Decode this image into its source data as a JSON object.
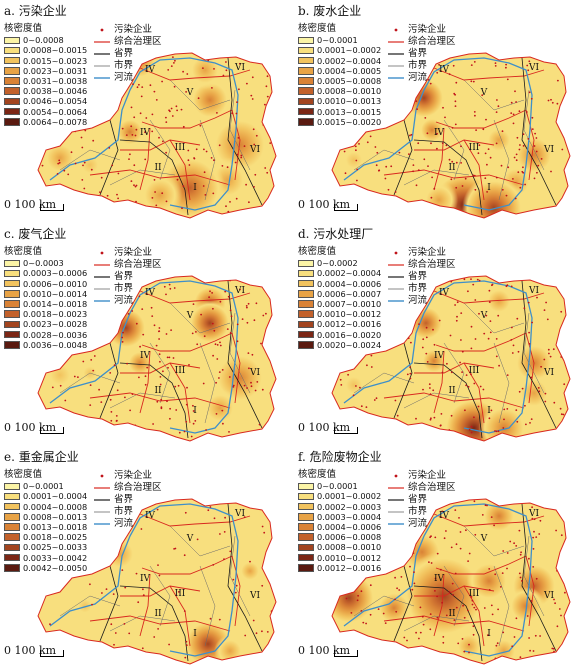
{
  "legend_common": {
    "density_label": "核密度值",
    "enterprise_label": "污染企业",
    "governance_label": "综合治理区",
    "province_label": "省界",
    "city_label": "市界",
    "river_label": "河流"
  },
  "scale_label": "0  100 km",
  "region_labels": [
    "I",
    "II",
    "III",
    "IV",
    "V",
    "VI"
  ],
  "colors": {
    "ramp": [
      "#fbf4a6",
      "#f8df7e",
      "#f2c35e",
      "#e8a346",
      "#d98236",
      "#c2612b",
      "#a2441f",
      "#7b2615"
    ],
    "province_border": "#1a1a1a",
    "governance_border": "#d8281f",
    "city_border": "#6b6b6b",
    "river": "#3e8fc9",
    "enterprise_dot": "#c0141b"
  },
  "panels": [
    {
      "title": "a. 污染企业",
      "classes": [
        "0~0.0008",
        "0.0008~0.0015",
        "0.0015~0.0023",
        "0.0023~0.0031",
        "0.0031~0.0038",
        "0.0038~0.0046",
        "0.0046~0.0054",
        "0.0054~0.0064",
        "0.0064~0.0078"
      ]
    },
    {
      "title": "b. 废水企业",
      "classes": [
        "0~0.0001",
        "0.0001~0.0002",
        "0.0002~0.0004",
        "0.0004~0.0005",
        "0.0005~0.0008",
        "0.0008~0.0010",
        "0.0010~0.0013",
        "0.0013~0.0015",
        "0.0015~0.0020"
      ]
    },
    {
      "title": "c. 废气企业",
      "classes": [
        "0~0.0003",
        "0.0003~0.0006",
        "0.0006~0.0010",
        "0.0010~0.0014",
        "0.0014~0.0018",
        "0.0018~0.0023",
        "0.0023~0.0028",
        "0.0028~0.0036",
        "0.0036~0.0048"
      ]
    },
    {
      "title": "d. 污水处理厂",
      "classes": [
        "0~0.0002",
        "0.0002~0.0004",
        "0.0004~0.0006",
        "0.0006~0.0007",
        "0.0007~0.0010",
        "0.0010~0.0012",
        "0.0012~0.0016",
        "0.0016~0.0020",
        "0.0020~0.0024"
      ]
    },
    {
      "title": "e. 重金属企业",
      "classes": [
        "0~0.0001",
        "0.0001~0.0004",
        "0.0004~0.0008",
        "0.0008~0.0013",
        "0.0013~0.0018",
        "0.0018~0.0025",
        "0.0025~0.0033",
        "0.0033~0.0042",
        "0.0042~0.0050"
      ]
    },
    {
      "title": "f. 危险废物企业",
      "classes": [
        "0~0.0001",
        "0.0001~0.0002",
        "0.0002~0.0003",
        "0.0003~0.0004",
        "0.0004~0.0006",
        "0.0006~0.0008",
        "0.0008~0.0010",
        "0.0010~0.0012",
        "0.0012~0.0016"
      ]
    }
  ]
}
